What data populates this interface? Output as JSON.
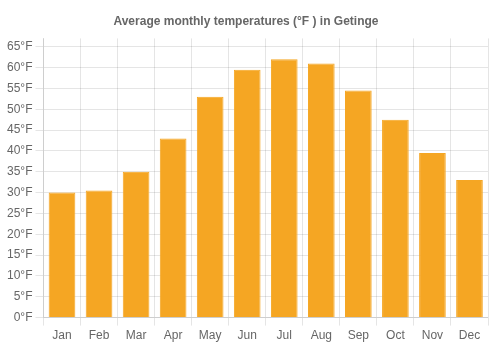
{
  "chart_data": {
    "type": "bar",
    "title": "Average monthly temperatures (°F ) in Getinge",
    "categories": [
      "Jan",
      "Feb",
      "Mar",
      "Apr",
      "May",
      "Jun",
      "Jul",
      "Aug",
      "Sep",
      "Oct",
      "Nov",
      "Dec"
    ],
    "values": [
      30,
      30.5,
      35,
      43,
      53,
      59.5,
      62,
      61,
      54.5,
      47.5,
      39.5,
      33
    ],
    "color": "#F5A623",
    "ylim": [
      0,
      67
    ],
    "yticks": [
      {
        "value": 0,
        "label": "0°F"
      },
      {
        "value": 5,
        "label": "5°F"
      },
      {
        "value": 10,
        "label": "10°F"
      },
      {
        "value": 15,
        "label": "15°F"
      },
      {
        "value": 20,
        "label": "20°F"
      },
      {
        "value": 25,
        "label": "25°F"
      },
      {
        "value": 30,
        "label": "30°F"
      },
      {
        "value": 35,
        "label": "35°F"
      },
      {
        "value": 40,
        "label": "40°F"
      },
      {
        "value": 45,
        "label": "45°F"
      },
      {
        "value": 50,
        "label": "50°F"
      },
      {
        "value": 55,
        "label": "55°F"
      },
      {
        "value": 60,
        "label": "60°F"
      },
      {
        "value": 65,
        "label": "65°F"
      }
    ],
    "grid": true
  }
}
